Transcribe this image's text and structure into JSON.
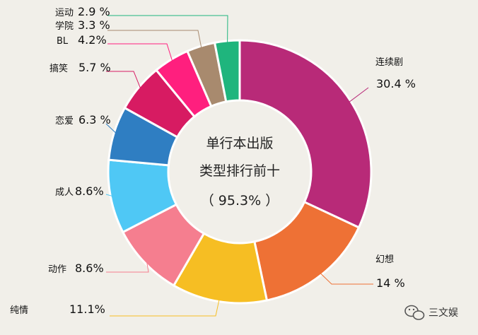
{
  "chart_data": {
    "type": "donut",
    "title_lines": [
      "单行本出版",
      "类型排行前十",
      "（ 95.3% ）"
    ],
    "slices": [
      {
        "label": "连续剧",
        "pct_label": "30.4 %",
        "value": 30.4,
        "color": "#b82a78"
      },
      {
        "label": "幻想",
        "pct_label": "14 %",
        "value": 14.0,
        "color": "#ee7135"
      },
      {
        "label": "纯情",
        "pct_label": "11.1%",
        "value": 11.1,
        "color": "#f6be23"
      },
      {
        "label": "动作",
        "pct_label": "8.6%",
        "value": 8.6,
        "color": "#f57e8f"
      },
      {
        "label": "成人",
        "pct_label": "8.6%",
        "value": 8.6,
        "color": "#4fc8f5"
      },
      {
        "label": "恋爱",
        "pct_label": "6.3 %",
        "value": 6.3,
        "color": "#2f7ec2"
      },
      {
        "label": "搞笑",
        "pct_label": "5.7 %",
        "value": 5.7,
        "color": "#d71b62"
      },
      {
        "label": "BL",
        "pct_label": "4.2%",
        "value": 4.2,
        "color": "#ff1f7e"
      },
      {
        "label": "学院",
        "pct_label": "3.3 %",
        "value": 3.3,
        "color": "#a88a6e"
      },
      {
        "label": "运动",
        "pct_label": "2.9 %",
        "value": 2.9,
        "color": "#1fb57d"
      }
    ]
  },
  "watermark": {
    "text": "三文娱",
    "icon": "wechat-icon"
  }
}
